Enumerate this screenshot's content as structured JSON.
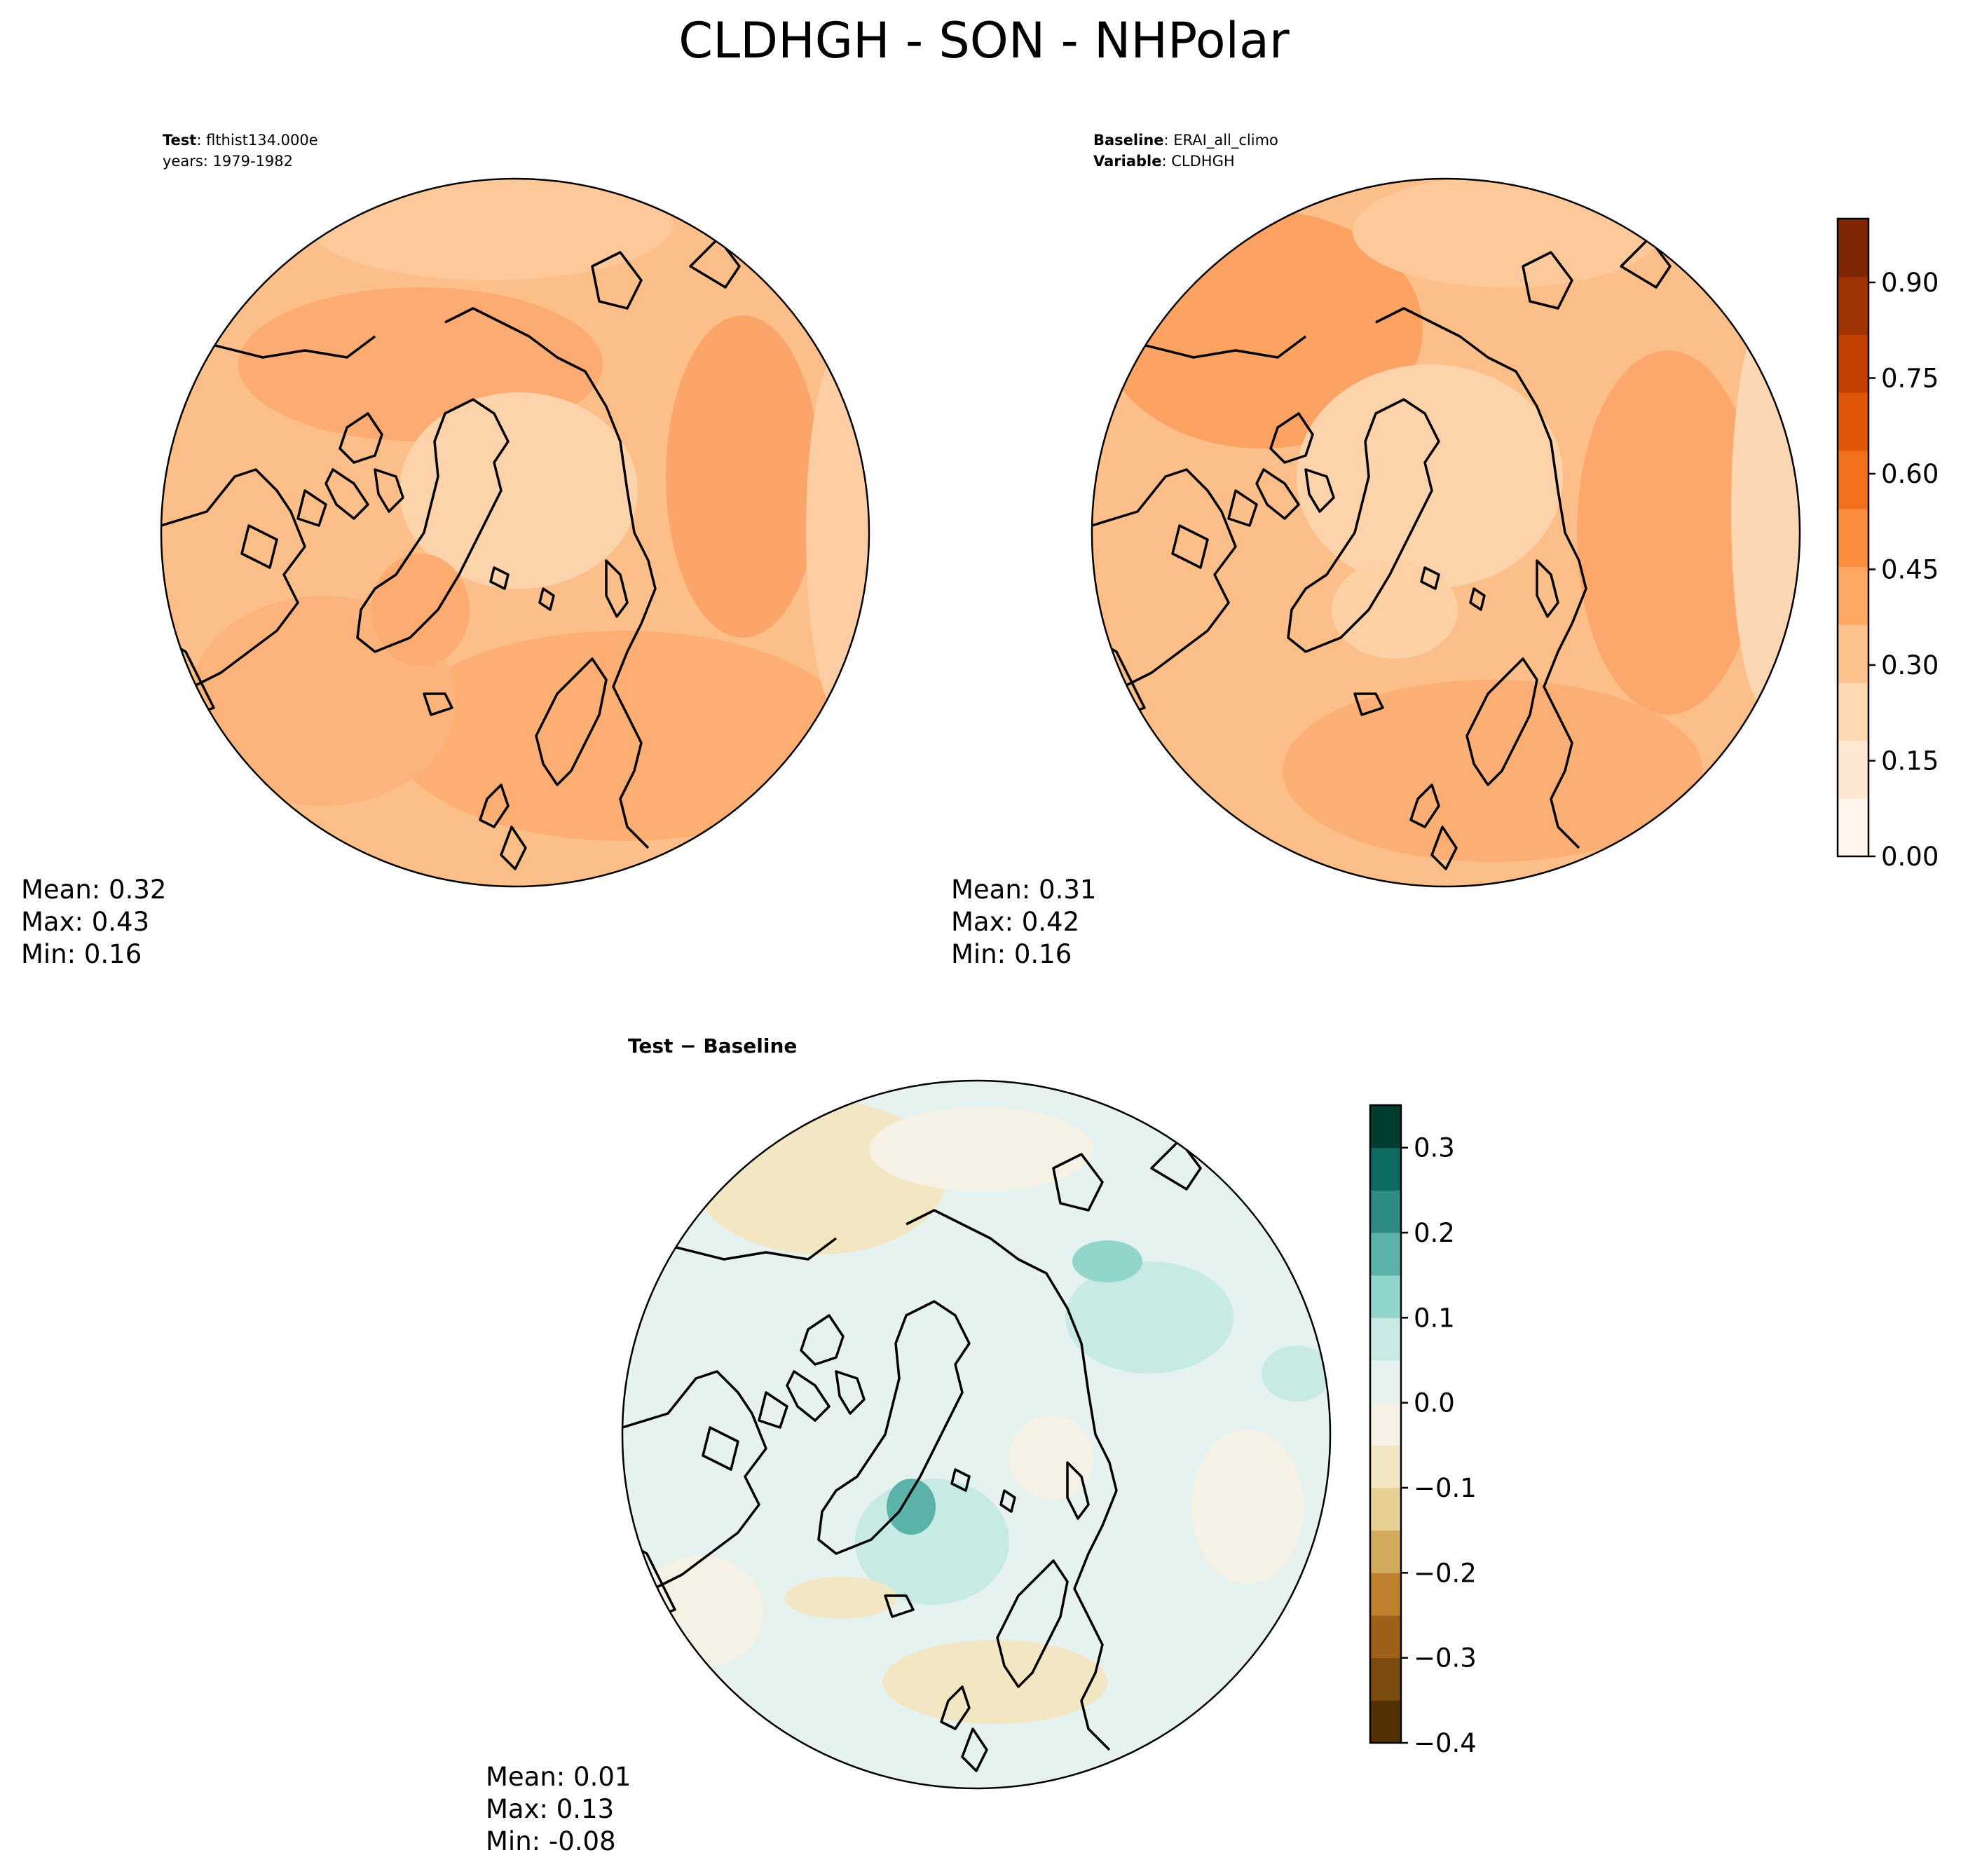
{
  "figure": {
    "title": "CLDHGH - SON - NHPolar"
  },
  "panels": {
    "test": {
      "label_bold": "Test",
      "label_value": "flthist134.000e",
      "years_line": "years: 1979-1982",
      "stats": {
        "mean": "Mean:  0.32",
        "max": "Max:  0.43",
        "min": "Min:  0.16"
      }
    },
    "baseline": {
      "label_bold": "Baseline",
      "label_value": "ERAI_all_climo",
      "variable_bold": "Variable",
      "variable_value": "CLDHGH",
      "stats": {
        "mean": "Mean:  0.31",
        "max": "Max:  0.42",
        "min": "Min:  0.16"
      }
    },
    "diff": {
      "label_bold": "Test − Baseline",
      "stats": {
        "mean": "Mean:  0.01",
        "max": "Max:  0.13",
        "min": "Min: -0.08"
      }
    }
  },
  "colorbars": {
    "main": {
      "ticks": [
        "0.00",
        "0.15",
        "0.30",
        "0.45",
        "0.60",
        "0.75",
        "0.90"
      ],
      "range": [
        0,
        1.0
      ],
      "colors": [
        "#fff5eb",
        "#fee8d3",
        "#fdd8b3",
        "#fdc28c",
        "#fda762",
        "#fb8d3d",
        "#f2701d",
        "#e25609",
        "#c44103",
        "#9f3303",
        "#7f2704"
      ]
    },
    "diff": {
      "ticks": [
        "0.3",
        "0.2",
        "0.1",
        "0.0",
        "−0.1",
        "−0.2",
        "−0.3",
        "−0.4"
      ],
      "range": [
        -0.4,
        0.35
      ],
      "colors": [
        "#543005",
        "#7b4a0e",
        "#9f6119",
        "#bf812d",
        "#d3ab5f",
        "#e8d095",
        "#f3e6c3",
        "#f5f1e4",
        "#e5f2ef",
        "#c7eae5",
        "#92d6cb",
        "#5ab2a8",
        "#2f8c84",
        "#0d6b62",
        "#003c30"
      ]
    }
  },
  "chart_data": {
    "type": "heatmap",
    "title": "CLDHGH - SON - NHPolar",
    "projection": "north polar stereographic",
    "maps": [
      {
        "name": "Test",
        "mean": 0.32,
        "max": 0.43,
        "min": 0.16,
        "colorbar_range": [
          0.0,
          1.0
        ]
      },
      {
        "name": "Baseline",
        "mean": 0.31,
        "max": 0.42,
        "min": 0.16,
        "colorbar_range": [
          0.0,
          1.0
        ]
      },
      {
        "name": "Test − Baseline",
        "mean": 0.01,
        "max": 0.13,
        "min": -0.08,
        "colorbar_range": [
          -0.4,
          0.35
        ]
      }
    ],
    "colorbar_ticks_main": [
      0.0,
      0.15,
      0.3,
      0.45,
      0.6,
      0.75,
      0.9
    ],
    "colorbar_ticks_diff": [
      0.3,
      0.2,
      0.1,
      0.0,
      -0.1,
      -0.2,
      -0.3,
      -0.4
    ]
  }
}
